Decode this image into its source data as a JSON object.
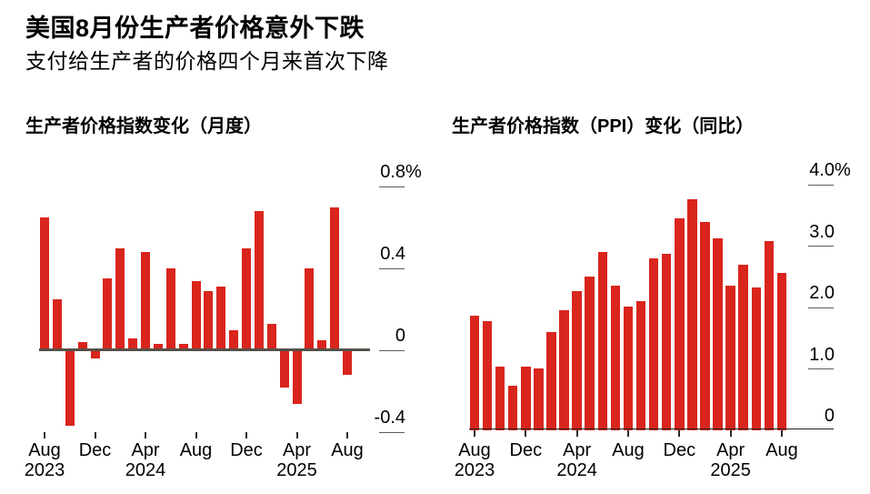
{
  "header": {
    "title": "美国8月份生产者价格意外下跌",
    "subtitle": "支付给生产者的价格四个月来首次下降"
  },
  "chart_data": [
    {
      "type": "bar",
      "title": "生产者价格指数变化（月度）",
      "xlabel": "",
      "ylabel": "",
      "ylim": [
        -0.4,
        0.8
      ],
      "grid": false,
      "bar_color": "#d9251d",
      "categories": [
        "Aug 2023",
        "Sep 2023",
        "Oct 2023",
        "Nov 2023",
        "Dec 2023",
        "Jan 2024",
        "Feb 2024",
        "Mar 2024",
        "Apr 2024",
        "May 2024",
        "Jun 2024",
        "Jul 2024",
        "Aug 2024",
        "Sep 2024",
        "Oct 2024",
        "Nov 2024",
        "Dec 2024",
        "Jan 2025",
        "Feb 2025",
        "Mar 2025",
        "Apr 2025",
        "May 2025",
        "Jun 2025",
        "Jul 2025",
        "Aug 2025"
      ],
      "values": [
        0.65,
        0.25,
        -0.37,
        0.04,
        -0.04,
        0.35,
        0.5,
        0.06,
        0.48,
        0.03,
        0.4,
        0.03,
        0.34,
        0.29,
        0.31,
        0.1,
        0.5,
        0.68,
        0.13,
        -0.18,
        -0.26,
        0.4,
        0.05,
        0.7,
        -0.12
      ],
      "yticks": [
        {
          "value": 0.8,
          "label": "0.8",
          "suffix": "%"
        },
        {
          "value": 0.4,
          "label": "0.4",
          "suffix": ""
        },
        {
          "value": 0,
          "label": "0",
          "suffix": ""
        },
        {
          "value": -0.4,
          "label": "-0.4",
          "suffix": ""
        }
      ],
      "xticks": [
        {
          "index": 0,
          "month": "Aug",
          "year": "2023"
        },
        {
          "index": 4,
          "month": "Dec",
          "year": ""
        },
        {
          "index": 8,
          "month": "Apr",
          "year": "2024"
        },
        {
          "index": 12,
          "month": "Aug",
          "year": ""
        },
        {
          "index": 16,
          "month": "Dec",
          "year": ""
        },
        {
          "index": 20,
          "month": "Apr",
          "year": "2025"
        },
        {
          "index": 24,
          "month": "Aug",
          "year": ""
        }
      ]
    },
    {
      "type": "bar",
      "title": "生产者价格指数（PPI）变化（同比）",
      "xlabel": "",
      "ylabel": "",
      "ylim": [
        0,
        4.0
      ],
      "grid": false,
      "bar_color": "#d9251d",
      "categories": [
        "Aug 2023",
        "Sep 2023",
        "Oct 2023",
        "Nov 2023",
        "Dec 2023",
        "Jan 2024",
        "Feb 2024",
        "Mar 2024",
        "Apr 2024",
        "May 2024",
        "Jun 2024",
        "Jul 2024",
        "Aug 2024",
        "Sep 2024",
        "Oct 2024",
        "Nov 2024",
        "Dec 2024",
        "Jan 2025",
        "Feb 2025",
        "Mar 2025",
        "Apr 2025",
        "May 2025",
        "Jun 2025",
        "Jul 2025",
        "Aug 2025"
      ],
      "values": [
        1.87,
        1.78,
        1.04,
        0.73,
        1.03,
        1.01,
        1.6,
        1.95,
        2.27,
        2.5,
        2.9,
        2.36,
        2.02,
        2.1,
        2.8,
        2.88,
        3.45,
        3.77,
        3.4,
        3.12,
        2.36,
        2.7,
        2.32,
        3.08,
        2.56
      ],
      "yticks": [
        {
          "value": 4.0,
          "label": "4.0",
          "suffix": "%"
        },
        {
          "value": 3.0,
          "label": "3.0",
          "suffix": ""
        },
        {
          "value": 2.0,
          "label": "2.0",
          "suffix": ""
        },
        {
          "value": 1.0,
          "label": "1.0",
          "suffix": ""
        },
        {
          "value": 0,
          "label": "0",
          "suffix": ""
        }
      ],
      "xticks": [
        {
          "index": 0,
          "month": "Aug",
          "year": "2023"
        },
        {
          "index": 4,
          "month": "Dec",
          "year": ""
        },
        {
          "index": 8,
          "month": "Apr",
          "year": "2024"
        },
        {
          "index": 12,
          "month": "Aug",
          "year": ""
        },
        {
          "index": 16,
          "month": "Dec",
          "year": ""
        },
        {
          "index": 20,
          "month": "Apr",
          "year": "2025"
        },
        {
          "index": 24,
          "month": "Aug",
          "year": ""
        }
      ]
    }
  ]
}
